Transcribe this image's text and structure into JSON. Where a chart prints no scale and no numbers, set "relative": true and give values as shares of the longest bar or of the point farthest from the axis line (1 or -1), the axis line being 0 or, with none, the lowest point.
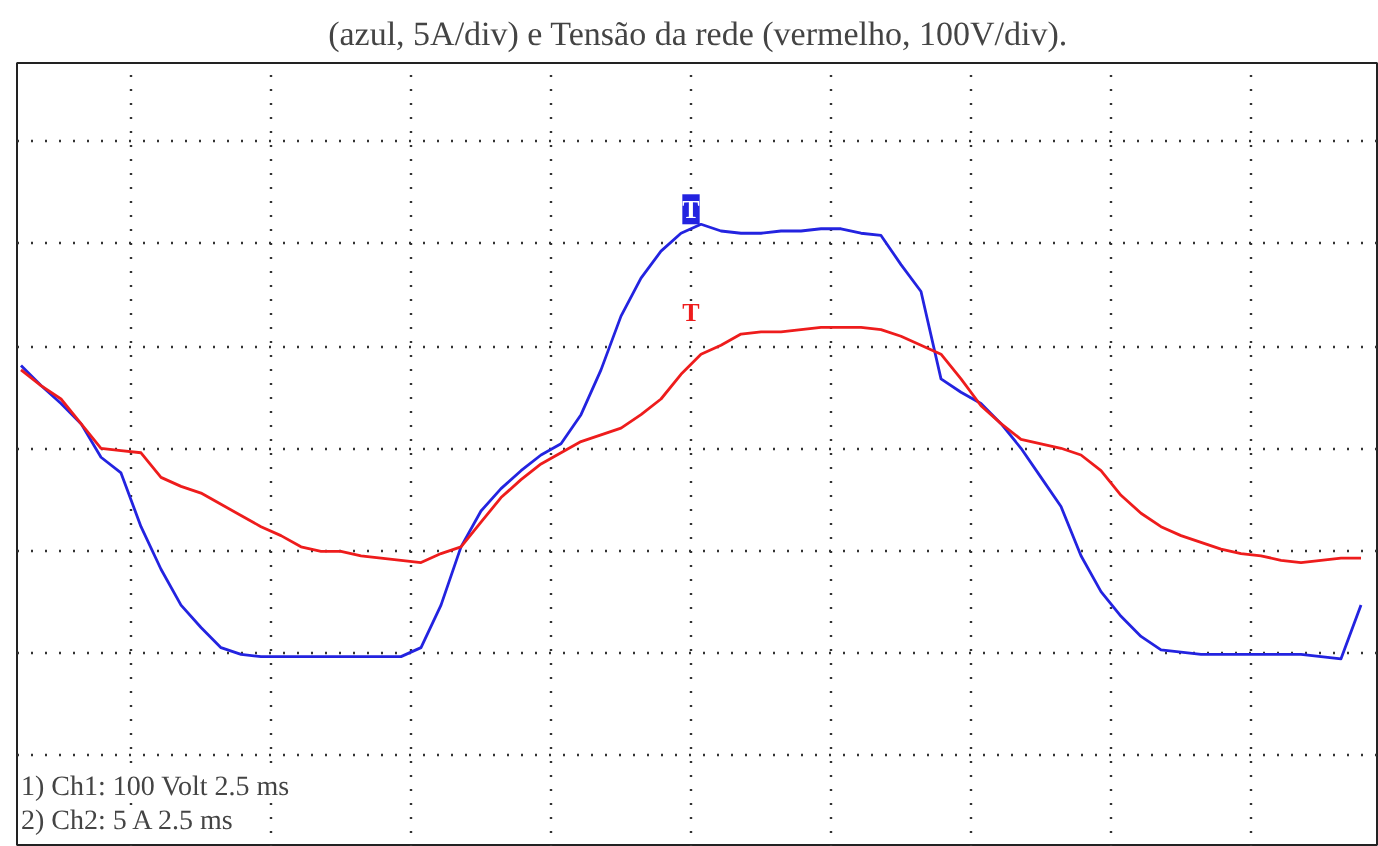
{
  "chart_data": {
    "type": "line",
    "title": "(azul, 5A/div) e Tensão da rede (vermelho, 100V/div).",
    "relative": true,
    "grid": true,
    "tick_labels": false,
    "categories": [
      null,
      null,
      null,
      null,
      null,
      null,
      null,
      null,
      null,
      null,
      null,
      null,
      null,
      null,
      null,
      null,
      null,
      null,
      null,
      null,
      null,
      null,
      null,
      null,
      null,
      null,
      null,
      null,
      null,
      null,
      null,
      null,
      null,
      null,
      null,
      null,
      null,
      null,
      null,
      null,
      null,
      null,
      null,
      null,
      null,
      null,
      null,
      null,
      null,
      null,
      null,
      null,
      null,
      null,
      null,
      null,
      null,
      null,
      null,
      null,
      null,
      null,
      null,
      null,
      null,
      null,
      null,
      null
    ],
    "series": [
      {
        "color": "#2323e0",
        "values": [
          0.37,
          0.28,
          0.2,
          0.11,
          -0.04,
          -0.11,
          -0.35,
          -0.54,
          -0.7,
          -0.8,
          -0.89,
          -0.92,
          -0.93,
          -0.93,
          -0.93,
          -0.93,
          -0.93,
          -0.93,
          -0.93,
          -0.93,
          -0.89,
          -0.7,
          -0.44,
          -0.28,
          -0.18,
          -0.1,
          -0.03,
          0.02,
          0.15,
          0.35,
          0.59,
          0.76,
          0.88,
          0.96,
          1.0,
          0.97,
          0.96,
          0.96,
          0.97,
          0.97,
          0.98,
          0.98,
          0.96,
          0.95,
          0.82,
          0.7,
          0.31,
          0.25,
          0.2,
          0.11,
          0,
          -0.13,
          -0.26,
          -0.48,
          -0.64,
          -0.75,
          -0.84,
          -0.9,
          -0.91,
          -0.92,
          -0.92,
          -0.92,
          -0.92,
          -0.92,
          -0.92,
          -0.93,
          -0.94,
          -0.7
        ]
      },
      {
        "color": "#ee1c1c",
        "values": [
          0.35,
          0.28,
          0.22,
          0.11,
          0,
          -0.01,
          -0.02,
          -0.13,
          -0.17,
          -0.2,
          -0.25,
          -0.3,
          -0.35,
          -0.39,
          -0.44,
          -0.46,
          -0.46,
          -0.48,
          -0.49,
          -0.5,
          -0.51,
          -0.47,
          -0.44,
          -0.33,
          -0.22,
          -0.14,
          -0.07,
          -0.02,
          0.03,
          0.06,
          0.09,
          0.15,
          0.22,
          0.33,
          0.42,
          0.46,
          0.51,
          0.52,
          0.52,
          0.53,
          0.54,
          0.54,
          0.54,
          0.53,
          0.5,
          0.46,
          0.42,
          0.31,
          0.19,
          0.11,
          0.04,
          0.02,
          0,
          -0.03,
          -0.1,
          -0.21,
          -0.29,
          -0.35,
          -0.39,
          -0.42,
          -0.45,
          -0.47,
          -0.48,
          -0.5,
          -0.51,
          -0.5,
          -0.49,
          -0.49
        ]
      }
    ],
    "annotations": [
      "T",
      "T",
      "1) Ch1:   100 Volt  2.5 ms",
      "2) Ch2:   5 A  2.5 ms"
    ]
  }
}
